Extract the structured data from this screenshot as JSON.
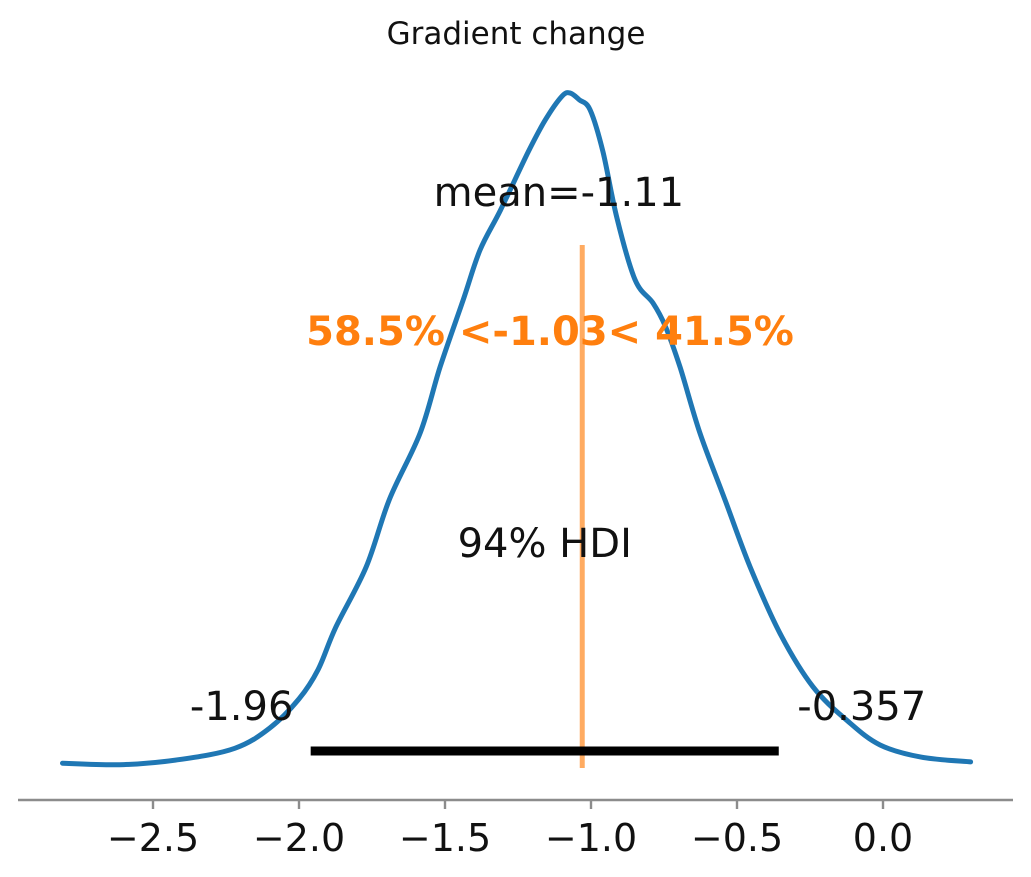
{
  "chart_data": {
    "type": "area",
    "kind": "posterior-kde-plot",
    "title": "Gradient change",
    "xlabel": "",
    "ylabel": "",
    "xlim": [
      -2.96,
      0.45
    ],
    "ylim": [
      0,
      1.08
    ],
    "grid": false,
    "legend": "none",
    "series": [
      {
        "name": "posterior density of Gradient change",
        "x": [
          -2.81,
          -2.6,
          -2.4,
          -2.22,
          -2.1,
          -2.0,
          -1.935,
          -1.875,
          -1.77,
          -1.69,
          -1.585,
          -1.517,
          -1.438,
          -1.38,
          -1.31,
          -1.215,
          -1.157,
          -1.1,
          -1.072,
          -1.04,
          -1.003,
          -0.959,
          -0.911,
          -0.849,
          -0.788,
          -0.745,
          -0.695,
          -0.627,
          -0.541,
          -0.455,
          -0.353,
          -0.24,
          -0.12,
          -0.01,
          0.13,
          0.3
        ],
        "density": [
          0.01,
          0.008,
          0.016,
          0.032,
          0.062,
          0.105,
          0.148,
          0.21,
          0.3,
          0.4,
          0.498,
          0.595,
          0.694,
          0.768,
          0.827,
          0.913,
          0.96,
          0.995,
          1.0,
          0.99,
          0.975,
          0.913,
          0.815,
          0.724,
          0.69,
          0.655,
          0.595,
          0.498,
          0.399,
          0.3,
          0.202,
          0.123,
          0.072,
          0.037,
          0.019,
          0.012
        ]
      }
    ],
    "x_axis": {
      "ticks": [
        {
          "value": -2.5,
          "label": "−2.5"
        },
        {
          "value": -2.0,
          "label": "−2.0"
        },
        {
          "value": -1.5,
          "label": "−1.5"
        },
        {
          "value": -1.0,
          "label": "−1.0"
        },
        {
          "value": -0.5,
          "label": "−0.5"
        },
        {
          "value": 0.0,
          "label": "0.0"
        }
      ]
    },
    "annotations": {
      "mean": {
        "value": -1.11,
        "label": "mean=-1.11"
      },
      "ref_line": {
        "value": -1.03,
        "label": "58.5% <-1.03< 41.5%",
        "pct_less": "58.5%",
        "pct_greater": "41.5%"
      },
      "hdi": {
        "level": "94%",
        "label": "94% HDI",
        "lower": -1.96,
        "upper": -0.357,
        "lower_label": "-1.96",
        "upper_label": "-0.357"
      }
    },
    "colors": {
      "curve": "#1f77b4",
      "ref_line": "#ffab61",
      "ref_text": "#ff7f0e",
      "hdi_bar": "#000000",
      "axis": "#8c8c8c",
      "text": "#111111"
    }
  }
}
